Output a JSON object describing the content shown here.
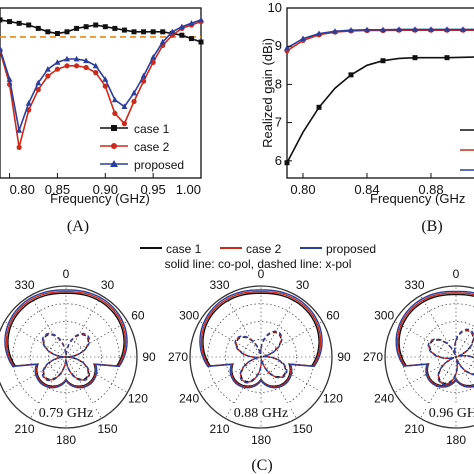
{
  "chart_data": [
    {
      "panel": "(A)",
      "type": "line",
      "xlabel": "Frequency (GHz)",
      "xticks": [
        "0.80",
        "0.85",
        "0.90",
        "0.95",
        "1.00"
      ],
      "xlim": [
        0.79,
        1.0
      ],
      "ylim": [
        0,
        1
      ],
      "x": [
        0.79,
        0.8,
        0.81,
        0.82,
        0.83,
        0.84,
        0.85,
        0.86,
        0.87,
        0.88,
        0.89,
        0.9,
        0.91,
        0.92,
        0.93,
        0.94,
        0.95,
        0.96,
        0.97,
        0.98,
        0.99,
        1.0
      ],
      "threshold": 0.83,
      "series": [
        {
          "name": "case 1",
          "color": "#111111",
          "marker": "square",
          "values": [
            0.93,
            0.92,
            0.91,
            0.9,
            0.88,
            0.86,
            0.85,
            0.86,
            0.88,
            0.89,
            0.9,
            0.89,
            0.88,
            0.87,
            0.86,
            0.86,
            0.86,
            0.86,
            0.85,
            0.84,
            0.82,
            0.8
          ]
        },
        {
          "name": "case 2",
          "color": "#cc2a1a",
          "marker": "circle",
          "values": [
            0.75,
            0.55,
            0.18,
            0.4,
            0.52,
            0.6,
            0.64,
            0.66,
            0.66,
            0.65,
            0.62,
            0.54,
            0.38,
            0.32,
            0.45,
            0.57,
            0.68,
            0.78,
            0.84,
            0.88,
            0.9,
            0.92
          ]
        },
        {
          "name": "proposed",
          "color": "#2c3e9c",
          "marker": "triangle",
          "values": [
            0.76,
            0.58,
            0.28,
            0.44,
            0.56,
            0.64,
            0.68,
            0.7,
            0.7,
            0.69,
            0.66,
            0.58,
            0.46,
            0.42,
            0.5,
            0.6,
            0.71,
            0.8,
            0.86,
            0.89,
            0.91,
            0.93
          ]
        }
      ],
      "panel_label": "(A)"
    },
    {
      "panel": "(B)",
      "type": "line",
      "xlabel": "Frequency (GHz",
      "ylabel": "Realized gain (dBi)",
      "xticks": [
        "0.80",
        "0.84",
        "0.88"
      ],
      "yticks": [
        "6",
        "7",
        "8",
        "9",
        "10"
      ],
      "xlim": [
        0.79,
        0.915
      ],
      "ylim": [
        5.55,
        10
      ],
      "x": [
        0.79,
        0.8,
        0.81,
        0.82,
        0.83,
        0.84,
        0.85,
        0.86,
        0.87,
        0.88,
        0.89,
        0.9,
        0.91
      ],
      "series": [
        {
          "name": "case 1",
          "color": "#111111",
          "marker": "square",
          "values": [
            5.95,
            6.75,
            7.4,
            7.9,
            8.25,
            8.5,
            8.62,
            8.68,
            8.7,
            8.7,
            8.7,
            8.71,
            8.72
          ]
        },
        {
          "name": "case 2",
          "color": "#cc2a1a",
          "marker": "circle",
          "values": [
            8.88,
            9.15,
            9.3,
            9.37,
            9.4,
            9.41,
            9.41,
            9.42,
            9.42,
            9.42,
            9.42,
            9.42,
            9.42
          ]
        },
        {
          "name": "proposed",
          "color": "#2c3e9c",
          "marker": "triangle",
          "values": [
            8.95,
            9.2,
            9.33,
            9.39,
            9.42,
            9.43,
            9.43,
            9.44,
            9.44,
            9.44,
            9.44,
            9.44,
            9.44
          ]
        }
      ],
      "panel_label": "(B)"
    },
    {
      "panel": "(C)",
      "type": "polar",
      "legend": [
        "case 1",
        "case 2",
        "proposed"
      ],
      "legend_colors": [
        "#111111",
        "#cc2a1a",
        "#2c3e9c"
      ],
      "note": "solid line: co-pol, dashed line: x-pol",
      "angle_labels": [
        "0",
        "30",
        "60",
        "90",
        "120",
        "150",
        "180",
        "210",
        "240",
        "270",
        "300",
        "330"
      ],
      "frequencies": [
        "0.79 GHz",
        "0.88 GHz",
        "0.96 GHz"
      ],
      "panel_label": "(C)"
    }
  ]
}
